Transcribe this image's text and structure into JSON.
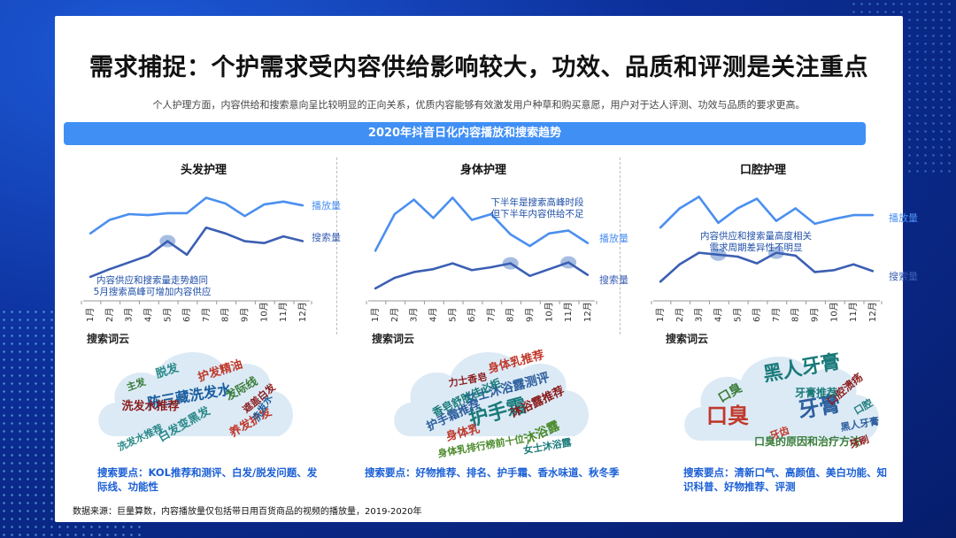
{
  "title": "需求捕捉：个护需求受内容供给影响较大，功效、品质和评测是关注重点",
  "subtitle": "个人护理方面，内容供给和搜索意向呈比较明显的正向关系，优质内容能够有效激发用户种草和购买意愿，用户对于达人评测、功效与品质的要求更高。",
  "banner": "2020年抖音日化内容播放和搜索趋势",
  "cloud_label": "搜索词云",
  "source": "数据来源：巨量算数，内容播放量仅包括带日用百货商品的视频的播放量，2019-2020年",
  "colors": {
    "play": "#4a8ff0",
    "search": "#3b5fb3",
    "accent": "#1a5fd6",
    "highlight": "#8aa8d8"
  },
  "chart_data": [
    {
      "type": "line",
      "title": "头发护理",
      "categories": [
        "1月",
        "2月",
        "3月",
        "4月",
        "5月",
        "6月",
        "7月",
        "8月",
        "9月",
        "10月",
        "11月",
        "12月"
      ],
      "series": [
        {
          "name": "播放量",
          "values": [
            6.8,
            8.2,
            8.8,
            8.7,
            8.9,
            8.9,
            10.5,
            9.9,
            8.6,
            9.8,
            10.1,
            9.7
          ]
        },
        {
          "name": "搜索量",
          "values": [
            2.3,
            3.1,
            3.8,
            4.5,
            6.0,
            4.6,
            7.4,
            6.8,
            6.0,
            5.8,
            6.5,
            6.0
          ]
        }
      ],
      "annotation": [
        "内容供应和搜索量走势趋同",
        "5月搜索高峰可增加内容供应"
      ],
      "keypoints": "搜索要点：KOL推荐和测评、白发/脱发问题、发际线、功能性"
    },
    {
      "type": "line",
      "title": "身体护理",
      "categories": [
        "1月",
        "2月",
        "3月",
        "4月",
        "5月",
        "6月",
        "7月",
        "8月",
        "9月",
        "10月",
        "11月",
        "12月"
      ],
      "series": [
        {
          "name": "播放量",
          "values": [
            5.0,
            8.8,
            10.3,
            8.4,
            10.5,
            8.2,
            8.8,
            6.7,
            5.5,
            6.8,
            7.1,
            5.8
          ]
        },
        {
          "name": "搜索量",
          "values": [
            1.1,
            2.2,
            2.8,
            3.1,
            3.7,
            3.0,
            3.3,
            3.7,
            2.4,
            3.1,
            3.8,
            2.5
          ]
        }
      ],
      "annotation": [
        "下半年是搜索高峰时段",
        "但下半年内容供给不足"
      ],
      "keypoints": "搜索要点：好物推荐、排名、护手霜、香水味道、秋冬季"
    },
    {
      "type": "line",
      "title": "口腔护理",
      "categories": [
        "1月",
        "2月",
        "3月",
        "4月",
        "5月",
        "6月",
        "7月",
        "8月",
        "9月",
        "10月",
        "11月",
        "12月"
      ],
      "series": [
        {
          "name": "播放量",
          "values": [
            7.4,
            9.4,
            10.6,
            7.9,
            9.4,
            10.4,
            8.1,
            9.4,
            7.8,
            8.3,
            8.7,
            8.7
          ]
        },
        {
          "name": "搜索量",
          "values": [
            1.8,
            3.6,
            4.8,
            4.6,
            4.4,
            3.7,
            4.8,
            4.5,
            2.8,
            3.0,
            3.6,
            2.9
          ]
        }
      ],
      "annotation": [
        "内容供应和搜索量高度相关",
        "需求周期差异性不明显"
      ],
      "keypoints": "搜索要点：清新口气、高颜值、美白功能、知识科普、好物推荐、评测"
    }
  ],
  "clouds": [
    {
      "words": [
        "脱发",
        "护发精油",
        "陈三藏洗发水",
        "发际线",
        "洗发水推荐",
        "白发变黑发",
        "养发护发",
        "洗发水",
        "主发",
        "遮盖白发",
        "洗发水推荐"
      ],
      "colors": [
        "#2a8a8a",
        "#c0392b",
        "#1a5e9e",
        "#3a7d3a",
        "#8b1c1c"
      ]
    },
    {
      "words": [
        "护手霜",
        "身体乳推荐",
        "女士沐浴露测评",
        "沐浴露",
        "沐浴露推荐",
        "香皂舒肤佳必柜",
        "身体乳",
        "护手霜推荐",
        "身体乳排行榜前十位",
        "力士香皂",
        "女士沐浴露"
      ],
      "colors": [
        "#1a7a7a",
        "#c0392b",
        "#2d5f9e",
        "#4a8a2a",
        "#8b1c1c"
      ]
    },
    {
      "words": [
        "黑人牙膏",
        "口臭",
        "牙膏",
        "口臭的原因和治疗方法",
        "口腔溃疡",
        "牙膏推荐",
        "牙齿",
        "黑人牙膏",
        "口臭",
        "牙刷",
        "口腔"
      ],
      "colors": [
        "#1a7a7a",
        "#c0392b",
        "#2d5f9e",
        "#3a7d3a",
        "#8b1c1c"
      ]
    }
  ]
}
